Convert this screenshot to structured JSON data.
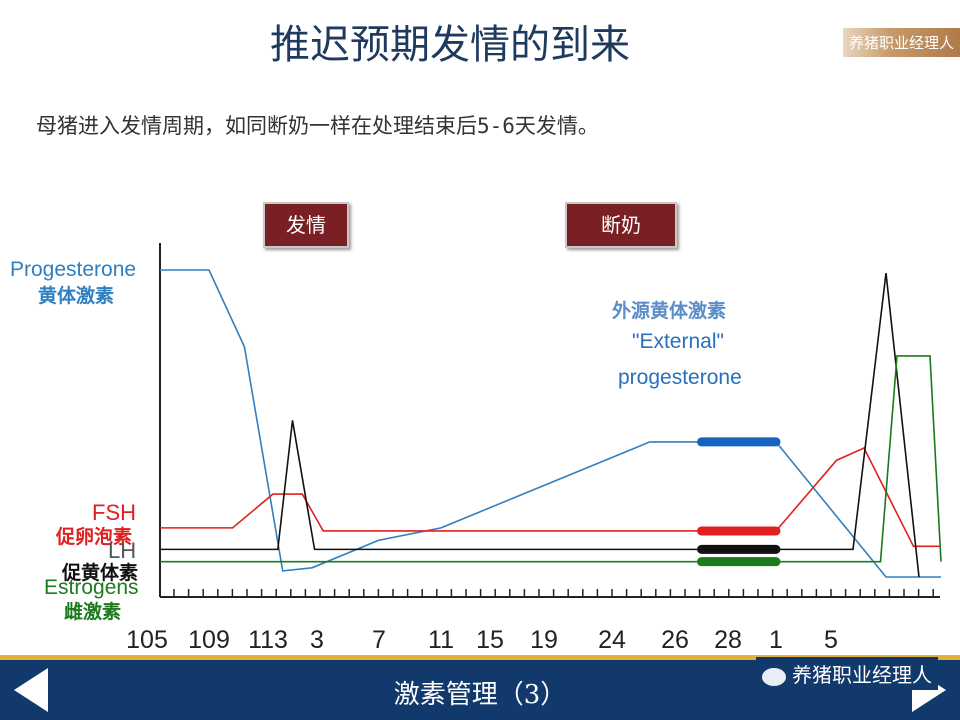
{
  "title": "推迟预期发情的到来",
  "logo_text": "养猪职业经理人",
  "subtitle": "母猪进入发情周期，如同断奶一样在处理结束后5-6天发情。",
  "tags": {
    "estrus": "发情",
    "weaning": "断奶"
  },
  "hormone_labels": {
    "progesterone_en": "Progesterone",
    "progesterone_cn": "黄体激素",
    "fsh_en": "FSH",
    "fsh_cn": "促卵泡素",
    "lh_en": "LH",
    "lh_cn": "促黄体素",
    "estrogens_en": "Estrogens",
    "estrogens_cn": "雌激素"
  },
  "external": {
    "cn": "外源黄体激素",
    "line1": "\"External\"",
    "line2": "progesterone"
  },
  "footer": {
    "title": "激素管理（3）",
    "wechat": "养猪职业经理人"
  },
  "colors": {
    "progesterone": "#2f7fc1",
    "fsh": "#e02020",
    "lh": "#111111",
    "estrogens": "#1b7a1b",
    "treatment_progesterone": "#1565c0",
    "tag_bg": "#7a1f24",
    "footer_bg": "#12396b"
  },
  "chart_data": {
    "type": "line",
    "title": "",
    "xlabel": "",
    "ylabel": "",
    "categories": [
      "105",
      "109",
      "113",
      "3",
      "7",
      "11",
      "15",
      "19",
      "24",
      "26",
      "28",
      "1",
      "5"
    ],
    "ylim": [
      0,
      100
    ],
    "note": "Relative hormone levels; the y axis carries no printed scale.",
    "series": [
      {
        "name": "Progesterone",
        "points": [
          [
            0,
            100
          ],
          [
            1,
            100
          ],
          [
            1.6,
            75
          ],
          [
            2.3,
            2
          ],
          [
            2.9,
            3
          ],
          [
            4,
            12
          ],
          [
            5,
            16
          ],
          [
            8.6,
            44
          ],
          [
            9.5,
            44
          ],
          [
            11,
            44
          ],
          [
            13,
            0
          ],
          [
            14,
            0
          ]
        ]
      },
      {
        "name": "FSH",
        "points": [
          [
            0,
            16
          ],
          [
            1.4,
            16
          ],
          [
            2.1,
            27
          ],
          [
            2.7,
            27
          ],
          [
            3.1,
            15
          ],
          [
            9.5,
            15
          ],
          [
            11,
            15
          ],
          [
            12.1,
            38
          ],
          [
            12.6,
            42
          ],
          [
            13.5,
            10
          ],
          [
            14,
            10
          ]
        ]
      },
      {
        "name": "LH",
        "points": [
          [
            0,
            9
          ],
          [
            2.2,
            9
          ],
          [
            2.5,
            51
          ],
          [
            2.95,
            9
          ],
          [
            9.5,
            9
          ],
          [
            11,
            9
          ],
          [
            12.4,
            9
          ],
          [
            13.0,
            99
          ],
          [
            13.6,
            0
          ]
        ]
      },
      {
        "name": "Estrogens",
        "points": [
          [
            0,
            5
          ],
          [
            9.5,
            5
          ],
          [
            11,
            5
          ],
          [
            12.9,
            5
          ],
          [
            13.2,
            72
          ],
          [
            13.8,
            72
          ],
          [
            14,
            5
          ]
        ]
      },
      {
        "name": "\"External\" progesterone",
        "points": [
          [
            9.5,
            44
          ],
          [
            11,
            44
          ]
        ]
      },
      {
        "name": "FSH treatment",
        "points": [
          [
            9.5,
            15
          ],
          [
            11,
            15
          ]
        ]
      },
      {
        "name": "LH treatment",
        "points": [
          [
            9.5,
            9
          ],
          [
            11,
            9
          ]
        ]
      },
      {
        "name": "Estrogens treatment",
        "points": [
          [
            9.5,
            5
          ],
          [
            11,
            5
          ]
        ]
      }
    ]
  }
}
